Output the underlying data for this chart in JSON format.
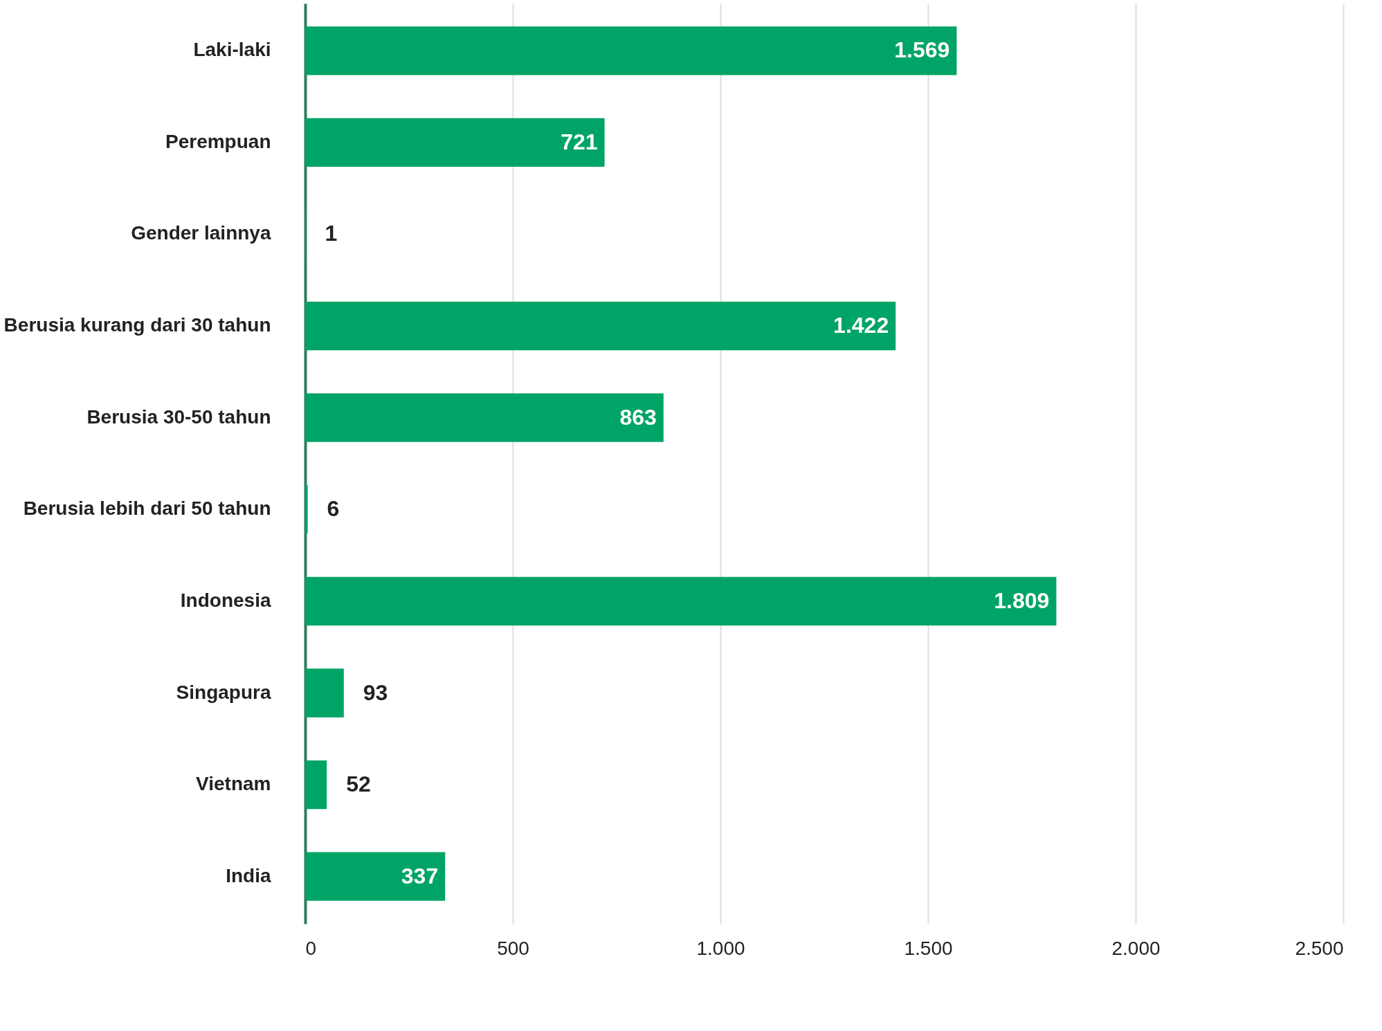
{
  "chart_data": {
    "type": "bar",
    "orientation": "horizontal",
    "categories": [
      "Laki-laki",
      "Perempuan",
      "Gender lainnya",
      "Berusia kurang dari 30 tahun",
      "Berusia 30-50 tahun",
      "Berusia lebih dari 50 tahun",
      "Indonesia",
      "Singapura",
      "Vietnam",
      "India"
    ],
    "values": [
      1569,
      721,
      1,
      1422,
      863,
      6,
      1809,
      93,
      52,
      337
    ],
    "value_labels": [
      "1.569",
      "721",
      "1",
      "1.422",
      "863",
      "6",
      "1.809",
      "93",
      "52",
      "337"
    ],
    "color": "#00a466",
    "xlim": [
      0,
      2500
    ],
    "xticks": [
      0,
      500,
      {
        "value": 1000,
        "label": "1.000"
      },
      {
        "value": 1500,
        "label": "1.500"
      },
      {
        "value": 2000,
        "label": "2.000"
      },
      {
        "value": 2500,
        "label": "2.500"
      }
    ],
    "grid": "x"
  }
}
